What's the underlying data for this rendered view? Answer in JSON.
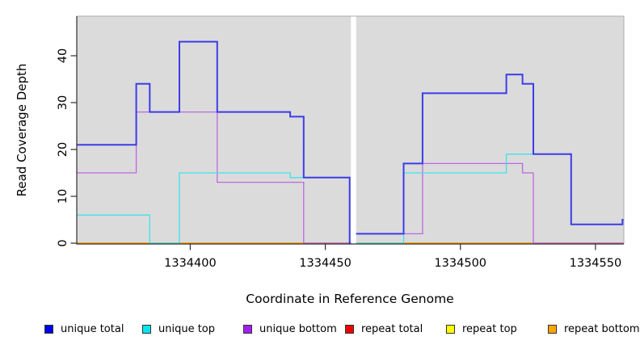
{
  "chart_data": {
    "type": "step-line",
    "title": "",
    "xlabel": "Coordinate in Reference Genome",
    "ylabel": "Read Coverage Depth",
    "xlim": [
      1334358,
      1334560.5
    ],
    "ylim": [
      -0.17,
      48.45
    ],
    "x_ticks": [
      1334400,
      1334450,
      1334500,
      1334550
    ],
    "y_ticks": [
      0,
      10,
      20,
      30,
      40
    ],
    "grid": "off",
    "panel_bg": "#DBDBDB",
    "mask_band": {
      "from": 1334459.5,
      "to": 1334461.4,
      "color": "#FFFFFF"
    },
    "series": [
      {
        "name": "repeat total",
        "color": "#E02040",
        "width": 1.3,
        "points": [
          [
            1334358,
            0
          ]
        ]
      },
      {
        "name": "repeat top",
        "color": "#F2E400",
        "width": 1.3,
        "points": [
          [
            1334358,
            0
          ]
        ]
      },
      {
        "name": "repeat bottom",
        "color": "#FFA10A",
        "width": 1.4,
        "points": [
          [
            1334358,
            0
          ]
        ]
      },
      {
        "name": "unique bottom",
        "color": "#BC68E0",
        "width": 1.3,
        "points": [
          [
            1334358,
            15
          ],
          [
            1334380,
            28
          ],
          [
            1334410,
            13
          ],
          [
            1334442,
            0
          ],
          [
            1334461,
            2
          ],
          [
            1334486,
            17
          ],
          [
            1334523,
            15
          ],
          [
            1334527,
            0
          ]
        ]
      },
      {
        "name": "unique top",
        "color": "#3FE2EA",
        "width": 1.3,
        "points": [
          [
            1334358,
            6
          ],
          [
            1334385,
            0
          ],
          [
            1334396,
            15
          ],
          [
            1334437,
            14
          ],
          [
            1334459,
            0
          ],
          [
            1334479,
            15
          ],
          [
            1334517,
            19
          ],
          [
            1334541,
            4
          ],
          [
            1334560,
            5
          ]
        ]
      },
      {
        "name": "unique total",
        "color": "#3C3CE8",
        "width": 2,
        "points": [
          [
            1334358,
            21
          ],
          [
            1334380,
            34
          ],
          [
            1334385,
            28
          ],
          [
            1334396,
            43
          ],
          [
            1334410,
            28
          ],
          [
            1334437,
            27
          ],
          [
            1334442,
            14
          ],
          [
            1334459,
            0
          ],
          [
            1334461,
            2
          ],
          [
            1334479,
            17
          ],
          [
            1334486,
            32
          ],
          [
            1334517,
            36
          ],
          [
            1334523,
            34
          ],
          [
            1334527,
            19
          ],
          [
            1334541,
            4
          ],
          [
            1334560,
            5
          ]
        ]
      }
    ],
    "legend": [
      {
        "label": "unique total",
        "color": "#0000EE"
      },
      {
        "label": "unique top",
        "color": "#00E5EE"
      },
      {
        "label": "unique bottom",
        "color": "#A020F0"
      },
      {
        "label": "repeat total",
        "color": "#EE0000"
      },
      {
        "label": "repeat top",
        "color": "#FFFF00"
      },
      {
        "label": "repeat bottom",
        "color": "#FFA500"
      }
    ],
    "legend_position": "bottom"
  }
}
